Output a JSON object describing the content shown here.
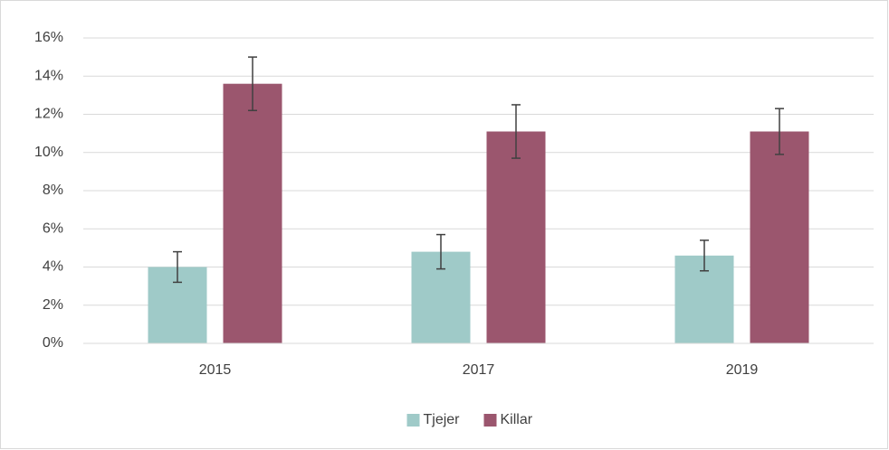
{
  "chart_data": {
    "type": "bar",
    "categories": [
      "2015",
      "2017",
      "2019"
    ],
    "series": [
      {
        "name": "Tjejer",
        "color": "#9fcac8",
        "values": [
          4.0,
          4.8,
          4.6
        ],
        "errors": [
          0.8,
          0.9,
          0.8
        ]
      },
      {
        "name": "Killar",
        "color": "#9b566e",
        "values": [
          13.6,
          11.1,
          11.1
        ],
        "errors": [
          1.4,
          1.4,
          1.2
        ]
      }
    ],
    "ylim": [
      0,
      16
    ],
    "yticks": [
      {
        "value": 0,
        "label": "0%"
      },
      {
        "value": 2,
        "label": "2%"
      },
      {
        "value": 4,
        "label": "4%"
      },
      {
        "value": 6,
        "label": "6%"
      },
      {
        "value": 8,
        "label": "8%"
      },
      {
        "value": 10,
        "label": "10%"
      },
      {
        "value": 12,
        "label": "12%"
      },
      {
        "value": 14,
        "label": "14%"
      },
      {
        "value": 16,
        "label": "16%"
      }
    ],
    "grid": true,
    "legend": "bottom"
  }
}
